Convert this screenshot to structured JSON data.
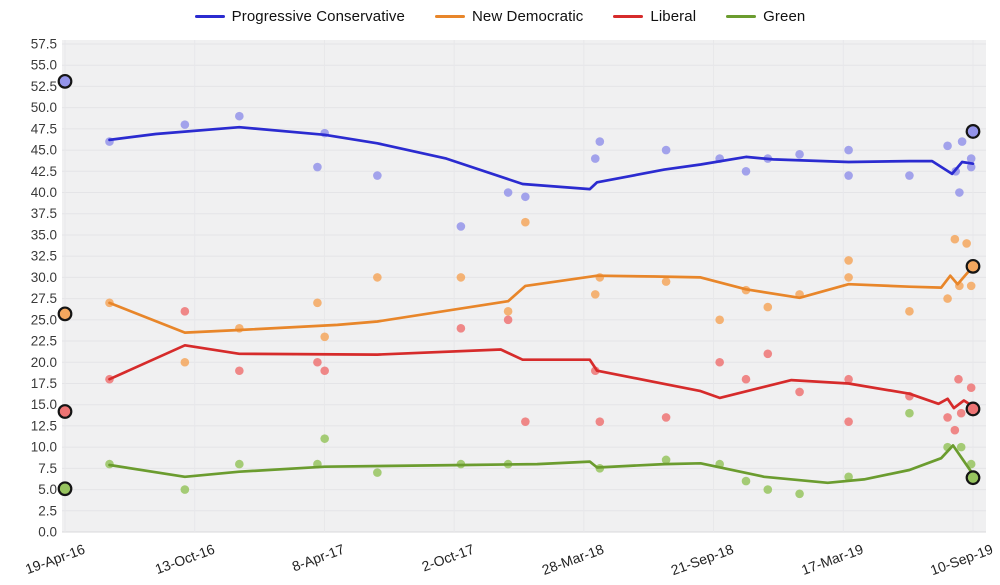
{
  "chart_data": {
    "type": "scatter",
    "subtype": "poll-scatter-with-trend-lines",
    "title": "",
    "legend_position": "top-center",
    "grid": true,
    "x_note": "x values are fractions of the axis span; 0 = 19-Apr-16 tick, 1 = 10-Sep-19 tick; ticks evenly spaced (177-day intervals)",
    "x_tick_labels": [
      "19-Apr-16",
      "13-Oct-16",
      "8-Apr-17",
      "2-Oct-17",
      "28-Mar-18",
      "21-Sep-18",
      "17-Mar-19",
      "10-Sep-19"
    ],
    "y_tick_labels": [
      "0.0",
      "2.5",
      "5.0",
      "7.5",
      "10.0",
      "12.5",
      "15.0",
      "17.5",
      "20.0",
      "22.5",
      "25.0",
      "27.5",
      "30.0",
      "32.5",
      "35.0",
      "37.5",
      "40.0",
      "42.5",
      "45.0",
      "47.5",
      "50.0",
      "52.5",
      "55.0",
      "57.5"
    ],
    "ylim": [
      0,
      57.5
    ],
    "y_step": 2.5,
    "background": {
      "figure": "#ffffff",
      "plot": "#f0f0f1",
      "hgrid": "#e4e4e7",
      "vgrid": "#e7e7ea",
      "axis_line": "#d8d8db",
      "tick_text": "#3a3a3a"
    },
    "series": [
      {
        "name": "Progressive Conservative",
        "line_color": "#2b2bd0",
        "point_color": "#9494ea",
        "trend": [
          [
            0.049,
            46.2
          ],
          [
            0.1,
            46.9
          ],
          [
            0.192,
            47.7
          ],
          [
            0.286,
            46.8
          ],
          [
            0.344,
            45.8
          ],
          [
            0.42,
            44.0
          ],
          [
            0.504,
            41.0
          ],
          [
            0.578,
            40.4
          ],
          [
            0.586,
            41.2
          ],
          [
            0.66,
            42.7
          ],
          [
            0.7,
            43.3
          ],
          [
            0.75,
            44.2
          ],
          [
            0.78,
            43.9
          ],
          [
            0.863,
            43.6
          ],
          [
            0.93,
            43.7
          ],
          [
            0.955,
            43.7
          ],
          [
            0.977,
            42.2
          ],
          [
            0.988,
            43.6
          ],
          [
            1.0,
            43.4
          ]
        ],
        "points": [
          [
            0.049,
            46
          ],
          [
            0.132,
            48
          ],
          [
            0.192,
            49
          ],
          [
            0.278,
            43
          ],
          [
            0.286,
            47
          ],
          [
            0.344,
            42
          ],
          [
            0.436,
            36
          ],
          [
            0.488,
            40
          ],
          [
            0.507,
            39.5
          ],
          [
            0.584,
            44
          ],
          [
            0.589,
            46
          ],
          [
            0.662,
            45
          ],
          [
            0.721,
            44
          ],
          [
            0.75,
            42.5
          ],
          [
            0.774,
            44
          ],
          [
            0.809,
            44.5
          ],
          [
            0.863,
            45
          ],
          [
            0.863,
            42
          ],
          [
            0.93,
            42
          ],
          [
            0.972,
            45.5
          ],
          [
            0.981,
            42.5
          ],
          [
            0.985,
            40
          ],
          [
            0.988,
            46
          ],
          [
            0.998,
            44
          ],
          [
            0.998,
            43
          ]
        ],
        "election_markers": [
          [
            0.0,
            53.1
          ],
          [
            1.0,
            47.2
          ]
        ]
      },
      {
        "name": "New Democratic",
        "line_color": "#e8862a",
        "point_color": "#f4a75e",
        "trend": [
          [
            0.049,
            27.0
          ],
          [
            0.132,
            23.5
          ],
          [
            0.192,
            23.8
          ],
          [
            0.3,
            24.4
          ],
          [
            0.344,
            24.8
          ],
          [
            0.488,
            27.2
          ],
          [
            0.507,
            29.0
          ],
          [
            0.586,
            30.2
          ],
          [
            0.65,
            30.1
          ],
          [
            0.7,
            30.0
          ],
          [
            0.75,
            28.6
          ],
          [
            0.809,
            27.6
          ],
          [
            0.863,
            29.2
          ],
          [
            0.93,
            28.9
          ],
          [
            0.965,
            28.8
          ],
          [
            0.975,
            30.2
          ],
          [
            0.983,
            29.2
          ],
          [
            1.0,
            31.3
          ]
        ],
        "points": [
          [
            0.049,
            27
          ],
          [
            0.132,
            20
          ],
          [
            0.192,
            24
          ],
          [
            0.278,
            27
          ],
          [
            0.286,
            23
          ],
          [
            0.344,
            30
          ],
          [
            0.436,
            30
          ],
          [
            0.488,
            26
          ],
          [
            0.507,
            36.5
          ],
          [
            0.584,
            28
          ],
          [
            0.589,
            30
          ],
          [
            0.662,
            29.5
          ],
          [
            0.721,
            25
          ],
          [
            0.75,
            28.5
          ],
          [
            0.774,
            26.5
          ],
          [
            0.809,
            28
          ],
          [
            0.863,
            32
          ],
          [
            0.863,
            30
          ],
          [
            0.93,
            26
          ],
          [
            0.972,
            27.5
          ],
          [
            0.98,
            34.5
          ],
          [
            0.985,
            29
          ],
          [
            0.993,
            34
          ],
          [
            0.998,
            29
          ]
        ],
        "election_markers": [
          [
            0.0,
            25.7
          ],
          [
            1.0,
            31.3
          ]
        ]
      },
      {
        "name": "Liberal",
        "line_color": "#d62b2b",
        "point_color": "#ee7474",
        "trend": [
          [
            0.049,
            18.0
          ],
          [
            0.132,
            22.0
          ],
          [
            0.192,
            21.0
          ],
          [
            0.344,
            20.9
          ],
          [
            0.48,
            21.5
          ],
          [
            0.504,
            20.3
          ],
          [
            0.578,
            20.3
          ],
          [
            0.586,
            19.0
          ],
          [
            0.7,
            16.6
          ],
          [
            0.721,
            15.8
          ],
          [
            0.8,
            17.9
          ],
          [
            0.863,
            17.5
          ],
          [
            0.93,
            16.3
          ],
          [
            0.962,
            15.1
          ],
          [
            0.972,
            15.7
          ],
          [
            0.979,
            14.6
          ],
          [
            0.99,
            15.5
          ],
          [
            1.0,
            14.8
          ]
        ],
        "points": [
          [
            0.049,
            18
          ],
          [
            0.132,
            26
          ],
          [
            0.192,
            19
          ],
          [
            0.278,
            20
          ],
          [
            0.286,
            19
          ],
          [
            0.436,
            24
          ],
          [
            0.488,
            25
          ],
          [
            0.507,
            13
          ],
          [
            0.584,
            19
          ],
          [
            0.589,
            13
          ],
          [
            0.662,
            13.5
          ],
          [
            0.721,
            20
          ],
          [
            0.75,
            18
          ],
          [
            0.774,
            21
          ],
          [
            0.809,
            16.5
          ],
          [
            0.863,
            18
          ],
          [
            0.863,
            13
          ],
          [
            0.93,
            16
          ],
          [
            0.972,
            13.5
          ],
          [
            0.98,
            12
          ],
          [
            0.984,
            18
          ],
          [
            0.987,
            14
          ],
          [
            0.998,
            17
          ]
        ],
        "election_markers": [
          [
            0.0,
            14.2
          ],
          [
            1.0,
            14.5
          ]
        ]
      },
      {
        "name": "Green",
        "line_color": "#6b9c2f",
        "point_color": "#97c45f",
        "trend": [
          [
            0.049,
            7.9
          ],
          [
            0.132,
            6.5
          ],
          [
            0.192,
            7.1
          ],
          [
            0.286,
            7.7
          ],
          [
            0.44,
            7.9
          ],
          [
            0.52,
            8.0
          ],
          [
            0.578,
            8.3
          ],
          [
            0.586,
            7.6
          ],
          [
            0.66,
            8.0
          ],
          [
            0.7,
            8.1
          ],
          [
            0.77,
            6.5
          ],
          [
            0.84,
            5.8
          ],
          [
            0.88,
            6.2
          ],
          [
            0.93,
            7.3
          ],
          [
            0.965,
            8.7
          ],
          [
            0.978,
            10.2
          ],
          [
            1.0,
            6.8
          ]
        ],
        "points": [
          [
            0.049,
            8
          ],
          [
            0.132,
            5
          ],
          [
            0.192,
            8
          ],
          [
            0.278,
            8
          ],
          [
            0.286,
            11
          ],
          [
            0.344,
            7
          ],
          [
            0.436,
            8
          ],
          [
            0.488,
            8
          ],
          [
            0.589,
            7.5
          ],
          [
            0.662,
            8.5
          ],
          [
            0.721,
            8
          ],
          [
            0.75,
            6
          ],
          [
            0.774,
            5
          ],
          [
            0.809,
            4.5
          ],
          [
            0.863,
            6.5
          ],
          [
            0.93,
            14
          ],
          [
            0.972,
            10
          ],
          [
            0.987,
            10
          ],
          [
            0.998,
            8
          ]
        ],
        "election_markers": [
          [
            0.0,
            5.1
          ],
          [
            1.0,
            6.4
          ]
        ]
      }
    ]
  }
}
